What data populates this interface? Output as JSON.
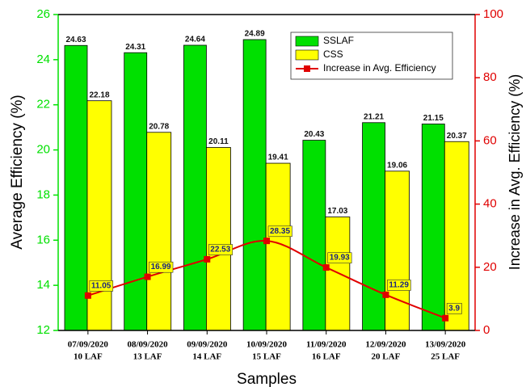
{
  "chart_data": {
    "type": "bar",
    "x_label": "Samples",
    "y_label": "Average Efficiency (%)",
    "y2_label": "Increase in Avg. Efficiency (%)",
    "categories": [
      [
        "07/09/2020",
        "10 LAF"
      ],
      [
        "08/09/2020",
        "13 LAF"
      ],
      [
        "09/09/2020",
        "14 LAF"
      ],
      [
        "10/09/2020",
        "15 LAF"
      ],
      [
        "11/09/2020",
        "16 LAF"
      ],
      [
        "12/09/2020",
        "20 LAF"
      ],
      [
        "13/09/2020",
        "25 LAF"
      ]
    ],
    "series": [
      {
        "name": "SSLAF",
        "type": "bar",
        "color": "#00e000",
        "values": [
          24.63,
          24.31,
          24.64,
          24.89,
          20.43,
          21.21,
          21.15
        ]
      },
      {
        "name": "CSS",
        "type": "bar",
        "color": "#ffff00",
        "values": [
          22.18,
          20.78,
          20.11,
          19.41,
          17.03,
          19.06,
          20.37
        ]
      },
      {
        "name": "Increase in Avg. Efficiency",
        "type": "line",
        "axis": "y2",
        "color": "#e00000",
        "values": [
          11.05,
          16.99,
          22.53,
          28.35,
          19.93,
          11.29,
          3.9
        ]
      }
    ],
    "ylim": [
      12,
      26
    ],
    "yticks": [
      12,
      14,
      16,
      18,
      20,
      22,
      24,
      26
    ],
    "y2lim": [
      0,
      100
    ],
    "y2ticks": [
      0,
      20,
      40,
      60,
      80,
      100
    ],
    "legend": "upper right"
  }
}
